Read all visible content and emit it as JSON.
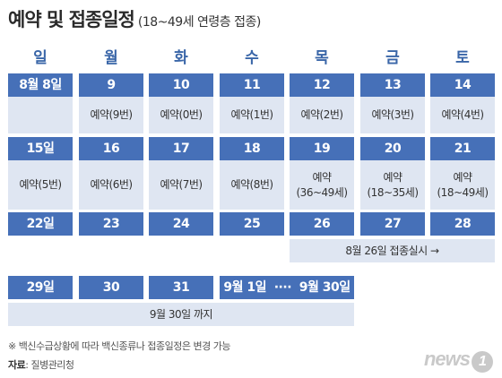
{
  "title": {
    "main": "예약 및 접종일정",
    "sub": "(18~49세 연령층 접종)"
  },
  "weekdays": [
    "일",
    "월",
    "화",
    "수",
    "목",
    "금",
    "토"
  ],
  "rows": [
    [
      {
        "date": "8월 8일",
        "note": ""
      },
      {
        "date": "9",
        "note": "예약(9번)"
      },
      {
        "date": "10",
        "note": "예약(0번)"
      },
      {
        "date": "11",
        "note": "예약(1번)"
      },
      {
        "date": "12",
        "note": "예약(2번)"
      },
      {
        "date": "13",
        "note": "예약(3번)"
      },
      {
        "date": "14",
        "note": "예약(4번)"
      }
    ],
    [
      {
        "date": "15일",
        "note": "예약(5번)"
      },
      {
        "date": "16",
        "note": "예약(6번)"
      },
      {
        "date": "17",
        "note": "예약(7번)"
      },
      {
        "date": "18",
        "note": "예약(8번)"
      },
      {
        "date": "19",
        "note": "예약\n(36~49세)"
      },
      {
        "date": "20",
        "note": "예약\n(18~35세)"
      },
      {
        "date": "21",
        "note": "예약\n(18~49세)"
      }
    ],
    [
      {
        "date": "22일"
      },
      {
        "date": "23"
      },
      {
        "date": "24"
      },
      {
        "date": "25"
      },
      {
        "date": "26"
      },
      {
        "date": "27"
      },
      {
        "date": "28"
      }
    ]
  ],
  "row3_note": "8월 26일 접종실시 →",
  "row4": {
    "cells": [
      "29일",
      "30",
      "31"
    ],
    "range": "9월 1일  ····  9월 30일",
    "note": "9월 30일 까지"
  },
  "footnote": "※ 백신수급상황에 따라 백신종류나 접종일정은 변경 가능",
  "source": {
    "label": "자료",
    "value": ": 질병관리청"
  },
  "logo": {
    "text": "news",
    "badge": "1"
  }
}
